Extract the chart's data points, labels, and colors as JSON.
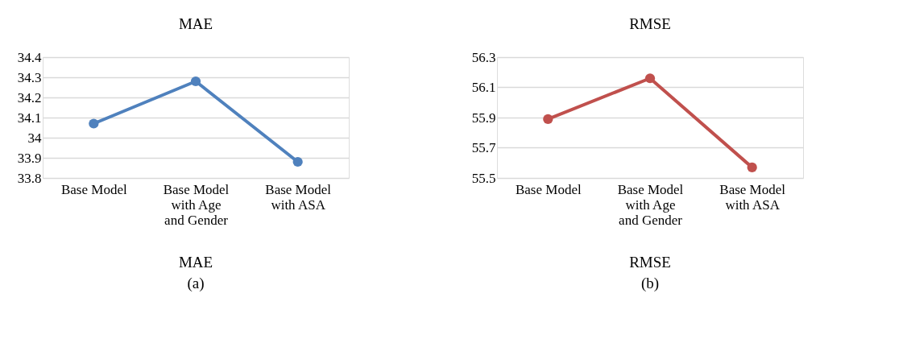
{
  "chart_data": [
    {
      "type": "line",
      "title": "MAE",
      "categories": [
        "Base Model",
        "Base Model with Age and Gender",
        "Base Model with ASA"
      ],
      "series": [
        {
          "color": "#4f81bd",
          "values": [
            34.07,
            34.28,
            33.88
          ]
        }
      ],
      "ylim": [
        33.8,
        34.4
      ],
      "yticks": [
        33.8,
        33.9,
        {
          "value": 34,
          "label": "34"
        },
        34.1,
        34.2,
        34.3,
        34.4
      ],
      "grid": "y",
      "marker": "circle",
      "line_style": "solid",
      "annotations": [
        "MAE",
        "(a)"
      ]
    },
    {
      "type": "line",
      "title": "RMSE",
      "categories": [
        "Base Model",
        "Base Model with Age and Gender",
        "Base Model with ASA"
      ],
      "series": [
        {
          "color": "#c0504d",
          "values": [
            55.89,
            56.16,
            55.57
          ]
        }
      ],
      "ylim": [
        55.5,
        56.3
      ],
      "yticks": [
        55.5,
        55.7,
        55.9,
        56.1,
        56.3
      ],
      "grid": "y",
      "marker": "circle",
      "line_style": "solid",
      "annotations": [
        "RMSE",
        "(b)"
      ]
    }
  ]
}
